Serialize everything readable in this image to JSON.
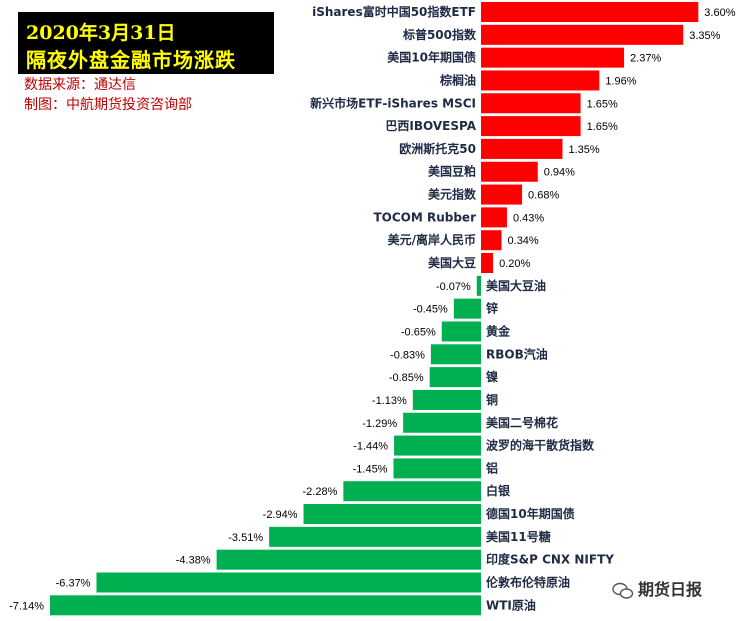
{
  "title": {
    "line1": "2020年3月31日",
    "line2": "隔夜外盘金融市场涨跌"
  },
  "source_text": "数据来源：通达信",
  "maker_text": "制图：中航期货投资咨询部",
  "watermark": {
    "text": "期货日报"
  },
  "colors": {
    "positive": "#ff0000",
    "negative": "#00b050",
    "title_bg": "#000000",
    "title_text": "#ffff00",
    "meta_text": "#c00000"
  },
  "chart_data": {
    "type": "bar",
    "orientation": "horizontal",
    "title": "隔夜外盘金融市场涨跌",
    "xlabel": "",
    "ylabel": "",
    "value_format": "percent",
    "xlim": [
      -7.14,
      3.6
    ],
    "categories": [
      "iShares富时中国50指数ETF",
      "标普500指数",
      "美国10年期国债",
      "棕榈油",
      "新兴市场ETF-iShares MSCI",
      "巴西IBOVESPA",
      "欧洲斯托克50",
      "美国豆粕",
      "美元指数",
      "TOCOM Rubber",
      "美元/离岸人民币",
      "美国大豆",
      "美国大豆油",
      "锌",
      "黄金",
      "RBOB汽油",
      "镍",
      "铜",
      "美国二号棉花",
      "波罗的海干散货指数",
      "铝",
      "白银",
      "德国10年期国债",
      "美国11号糖",
      "印度S&P CNX NIFTY",
      "伦敦布伦特原油",
      "WTI原油"
    ],
    "values": [
      3.6,
      3.35,
      2.37,
      1.96,
      1.65,
      1.65,
      1.35,
      0.94,
      0.68,
      0.43,
      0.34,
      0.2,
      -0.07,
      -0.45,
      -0.65,
      -0.83,
      -0.85,
      -1.13,
      -1.29,
      -1.44,
      -1.45,
      -2.28,
      -2.94,
      -3.51,
      -4.38,
      -6.37,
      -7.14
    ],
    "labels": [
      "3.60%",
      "3.35%",
      "2.37%",
      "1.96%",
      "1.65%",
      "1.65%",
      "1.35%",
      "0.94%",
      "0.68%",
      "0.43%",
      "0.34%",
      "0.20%",
      "-0.07%",
      "-0.45%",
      "-0.65%",
      "-0.83%",
      "-0.85%",
      "-1.13%",
      "-1.29%",
      "-1.44%",
      "-1.45%",
      "-2.28%",
      "-2.94%",
      "-3.51%",
      "-4.38%",
      "-6.37%",
      "-7.14%"
    ]
  }
}
